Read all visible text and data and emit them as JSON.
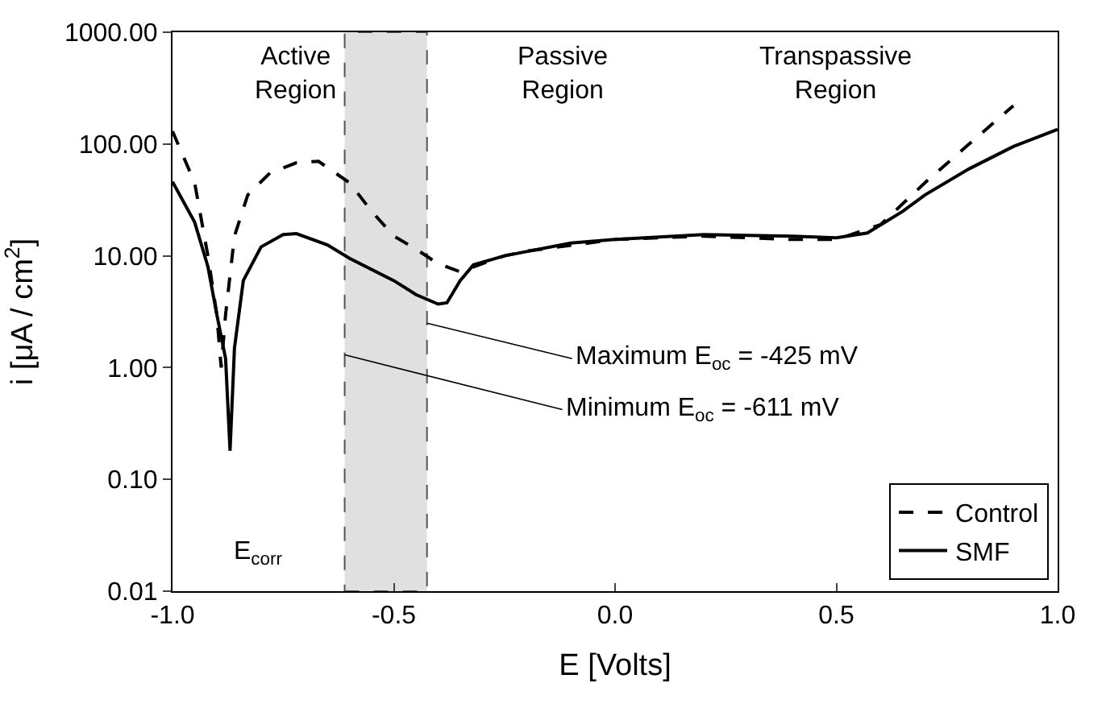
{
  "chart_data": {
    "type": "line",
    "xlabel": "E [Volts]",
    "ylabel": "i [μA / cm$^{2}$]",
    "log": "y",
    "grid": false,
    "legend": "bottom right",
    "marker": "none",
    "xlim": [
      -1.0,
      1.0
    ],
    "xticks": [
      {
        "value": -1.0,
        "label": "-1.0"
      },
      {
        "value": -0.5,
        "label": "-0.5"
      },
      {
        "value": 0,
        "label": "0.0"
      },
      {
        "value": 0.5,
        "label": "0.5"
      },
      {
        "value": 1.0,
        "label": "1.0"
      }
    ],
    "ylim": [
      0.01,
      1000
    ],
    "yticks": [
      {
        "value": 0.01,
        "label": "0.01"
      },
      {
        "value": 0.1,
        "label": "0.10"
      },
      {
        "value": 1,
        "label": "1.00"
      },
      {
        "value": 10,
        "label": "10.00"
      },
      {
        "value": 100,
        "label": "100.00"
      },
      {
        "value": 1000,
        "label": "1000.00"
      }
    ],
    "series": [
      {
        "name": "Control",
        "color": "#000000",
        "line_style": "dashed",
        "x": [
          -1.0,
          -0.95,
          -0.92,
          -0.9,
          -0.89,
          -0.88,
          -0.86,
          -0.83,
          -0.78,
          -0.72,
          -0.67,
          -0.6,
          -0.55,
          -0.5,
          -0.45,
          -0.4,
          -0.35,
          -0.3,
          -0.25,
          -0.2,
          0.0,
          0.2,
          0.4,
          0.5,
          0.6,
          0.7,
          0.8,
          0.9
        ],
        "values": [
          130,
          45,
          10,
          3,
          1.0,
          3,
          15,
          35,
          55,
          68,
          70,
          45,
          25,
          15,
          11.5,
          8.5,
          7.2,
          8.5,
          10,
          11,
          14,
          15,
          14,
          14,
          19,
          45,
          100,
          220
        ]
      },
      {
        "name": "SMF",
        "color": "#000000",
        "line_style": "solid",
        "x": [
          -1.0,
          -0.95,
          -0.92,
          -0.9,
          -0.88,
          -0.87,
          -0.86,
          -0.84,
          -0.8,
          -0.75,
          -0.72,
          -0.65,
          -0.6,
          -0.5,
          -0.45,
          -0.4,
          -0.38,
          -0.35,
          -0.32,
          -0.25,
          -0.1,
          0.0,
          0.2,
          0.4,
          0.5,
          0.57,
          0.65,
          0.7,
          0.8,
          0.9,
          1.0
        ],
        "values": [
          46,
          20,
          8,
          3,
          1.2,
          0.18,
          1.5,
          6,
          12,
          15.5,
          15.8,
          12.5,
          9.5,
          6,
          4.5,
          3.7,
          3.8,
          6,
          8.3,
          10,
          13,
          14,
          15.5,
          15,
          14.5,
          16,
          25,
          35,
          60,
          95,
          135
        ]
      }
    ],
    "bands": [
      {
        "axis": "x",
        "from": -0.611,
        "to": -0.425,
        "color": "#e0e0e0"
      }
    ],
    "annotations": [
      "Active Region",
      "Passive Region",
      "Transpassive Region",
      "E$_{corr}$",
      {
        "text": "Maximum E$_{oc}$ = -425 mV",
        "x": -0.425,
        "y": 2.5
      },
      {
        "text": "Minimum E$_{oc}$ = -611 mV",
        "x": -0.611,
        "y": 1.3
      }
    ]
  }
}
